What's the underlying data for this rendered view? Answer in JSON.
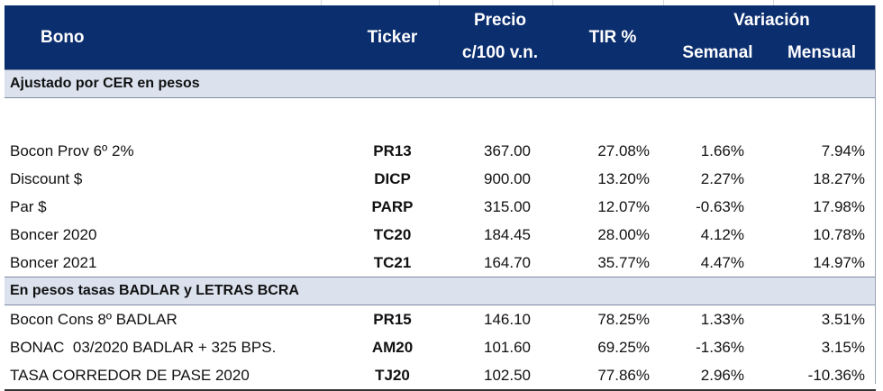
{
  "header": {
    "bono": "Bono",
    "ticker": "Ticker",
    "precio_line1": "Precio",
    "precio_line2": "c/100 v.n.",
    "tir": "TIR %",
    "variacion": "Variación",
    "semanal": "Semanal",
    "mensual": "Mensual"
  },
  "sections": [
    {
      "title": "Ajustado por CER en pesos",
      "rows": [
        {
          "bono": "Bocon Prov 6º 2%",
          "ticker": "PR13",
          "precio": "367.00",
          "tir": "27.08%",
          "semanal": "1.66%",
          "mensual": "7.94%"
        },
        {
          "bono": "Discount $",
          "ticker": "DICP",
          "precio": "900.00",
          "tir": "13.20%",
          "semanal": "2.27%",
          "mensual": "18.27%"
        },
        {
          "bono": "Par $",
          "ticker": "PARP",
          "precio": "315.00",
          "tir": "12.07%",
          "semanal": "-0.63%",
          "mensual": "17.98%"
        },
        {
          "bono": "Boncer 2020",
          "ticker": "TC20",
          "precio": "184.45",
          "tir": "28.00%",
          "semanal": "4.12%",
          "mensual": "10.78%"
        },
        {
          "bono": "Boncer 2021",
          "ticker": "TC21",
          "precio": "164.70",
          "tir": "35.77%",
          "semanal": "4.47%",
          "mensual": "14.97%"
        }
      ]
    },
    {
      "title": "En pesos tasas BADLAR y LETRAS BCRA",
      "rows": [
        {
          "bono": "Bocon Cons 8º BADLAR",
          "ticker": "PR15",
          "precio": "146.10",
          "tir": "78.25%",
          "semanal": "1.33%",
          "mensual": "3.51%"
        },
        {
          "bono": "BONAC  03/2020 BADLAR + 325 BPS.",
          "ticker": "AM20",
          "precio": "101.60",
          "tir": "69.25%",
          "semanal": "-1.36%",
          "mensual": "3.15%"
        },
        {
          "bono": "TASA CORREDOR DE PASE 2020",
          "ticker": "TJ20",
          "precio": "102.50",
          "tir": "77.86%",
          "semanal": "2.96%",
          "mensual": "-10.36%"
        }
      ]
    }
  ]
}
